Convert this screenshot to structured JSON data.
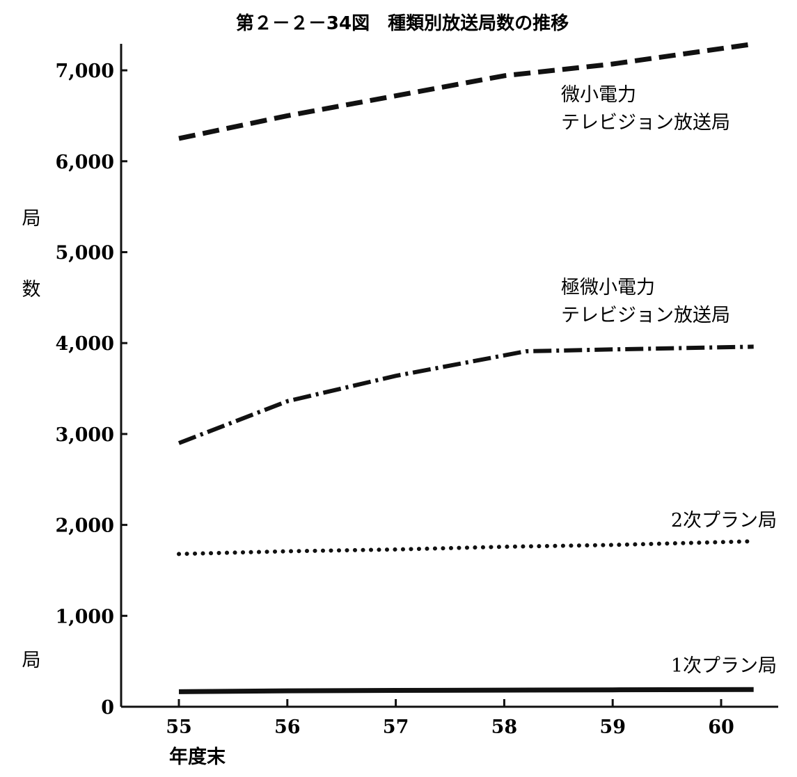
{
  "chart_data": {
    "type": "line",
    "title": "第２－２－34図　種類別放送局数の推移",
    "xlabel": "年度末",
    "ylabel": "局数",
    "ylabel_chars": [
      "局",
      "数"
    ],
    "yunit": "局",
    "categories": [
      "55",
      "56",
      "57",
      "58",
      "59",
      "60"
    ],
    "xlim": [
      55,
      60.3
    ],
    "ylim": [
      0,
      7000
    ],
    "yticks": [
      "0",
      "1,000",
      "2,000",
      "3,000",
      "4,000",
      "5,000",
      "6,000",
      "7,000"
    ],
    "grid": false,
    "series": [
      {
        "name": "微小電力テレビジョン放送局",
        "label_lines": [
          "微小電力",
          "テレビジョン放送局"
        ],
        "style": "dashed",
        "x": [
          55,
          56,
          57,
          58,
          59,
          60.3
        ],
        "values": [
          6250,
          6500,
          6720,
          6940,
          7070,
          7290
        ]
      },
      {
        "name": "極微小電力テレビジョン放送局",
        "label_lines": [
          "極微小電力",
          "テレビジョン放送局"
        ],
        "style": "dashdot",
        "x": [
          55,
          56,
          57,
          58.2,
          59,
          60.3
        ],
        "values": [
          2900,
          3360,
          3640,
          3910,
          3930,
          3960
        ]
      },
      {
        "name": "2次プラン局",
        "label_lines": [
          "2次プラン局"
        ],
        "style": "dotted",
        "x": [
          55,
          56,
          57,
          58,
          59,
          60.3
        ],
        "values": [
          1680,
          1710,
          1730,
          1760,
          1780,
          1820
        ]
      },
      {
        "name": "1次プラン局",
        "label_lines": [
          "1次プラン局"
        ],
        "style": "solid",
        "x": [
          55,
          56,
          57,
          58,
          59,
          60.3
        ],
        "values": [
          165,
          175,
          180,
          183,
          186,
          190
        ]
      }
    ]
  }
}
